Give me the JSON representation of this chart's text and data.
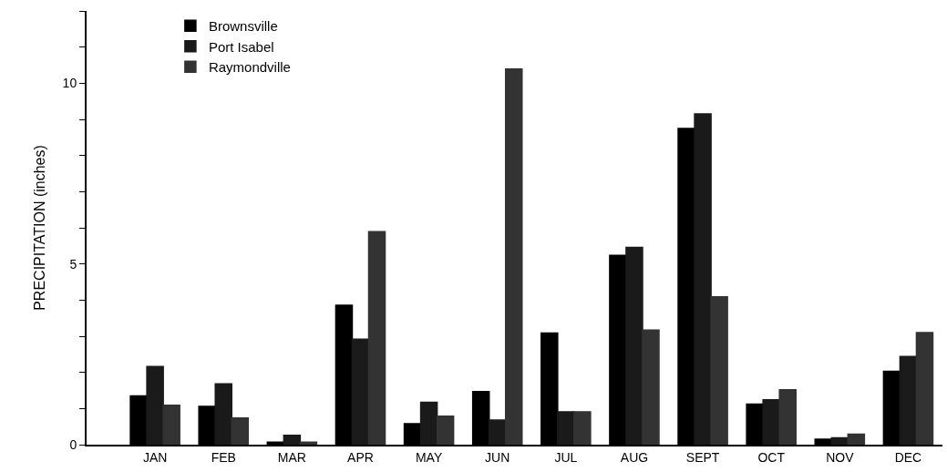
{
  "chart_data": {
    "type": "bar",
    "ylabel": "PRECIPITATION (inches)",
    "categories": [
      "JAN",
      "FEB",
      "MAR",
      "APR",
      "MAY",
      "JUN",
      "JUL",
      "AUG",
      "SEPT",
      "OCT",
      "NOV",
      "DEC"
    ],
    "series": [
      {
        "name": "Brownsville",
        "color": "#000000",
        "values": [
          1.35,
          1.06,
          0.07,
          3.86,
          0.58,
          1.47,
          3.09,
          5.24,
          8.75,
          1.12,
          0.15,
          2.03
        ]
      },
      {
        "name": "Port Isabel",
        "color": "#1a1a1a",
        "values": [
          2.16,
          1.68,
          0.26,
          2.92,
          1.17,
          0.68,
          0.91,
          5.46,
          9.15,
          1.24,
          0.19,
          2.44
        ]
      },
      {
        "name": "Raymondville",
        "color": "#333333",
        "values": [
          1.09,
          0.74,
          0.07,
          5.89,
          0.79,
          10.39,
          0.91,
          3.17,
          4.09,
          1.52,
          0.29,
          3.1
        ]
      }
    ],
    "ylim": [
      0,
      12
    ],
    "yticks": [
      0,
      {
        "value": 1,
        "label": null
      },
      {
        "value": 2,
        "label": null
      },
      {
        "value": 3,
        "label": null
      },
      {
        "value": 4,
        "label": null
      },
      5,
      {
        "value": 6,
        "label": null
      },
      {
        "value": 7,
        "label": null
      },
      {
        "value": 8,
        "label": null
      },
      {
        "value": 9,
        "label": null
      },
      10,
      {
        "value": 11,
        "label": null
      },
      {
        "value": 12,
        "label": null
      }
    ],
    "grid": false,
    "legend": "top left"
  }
}
